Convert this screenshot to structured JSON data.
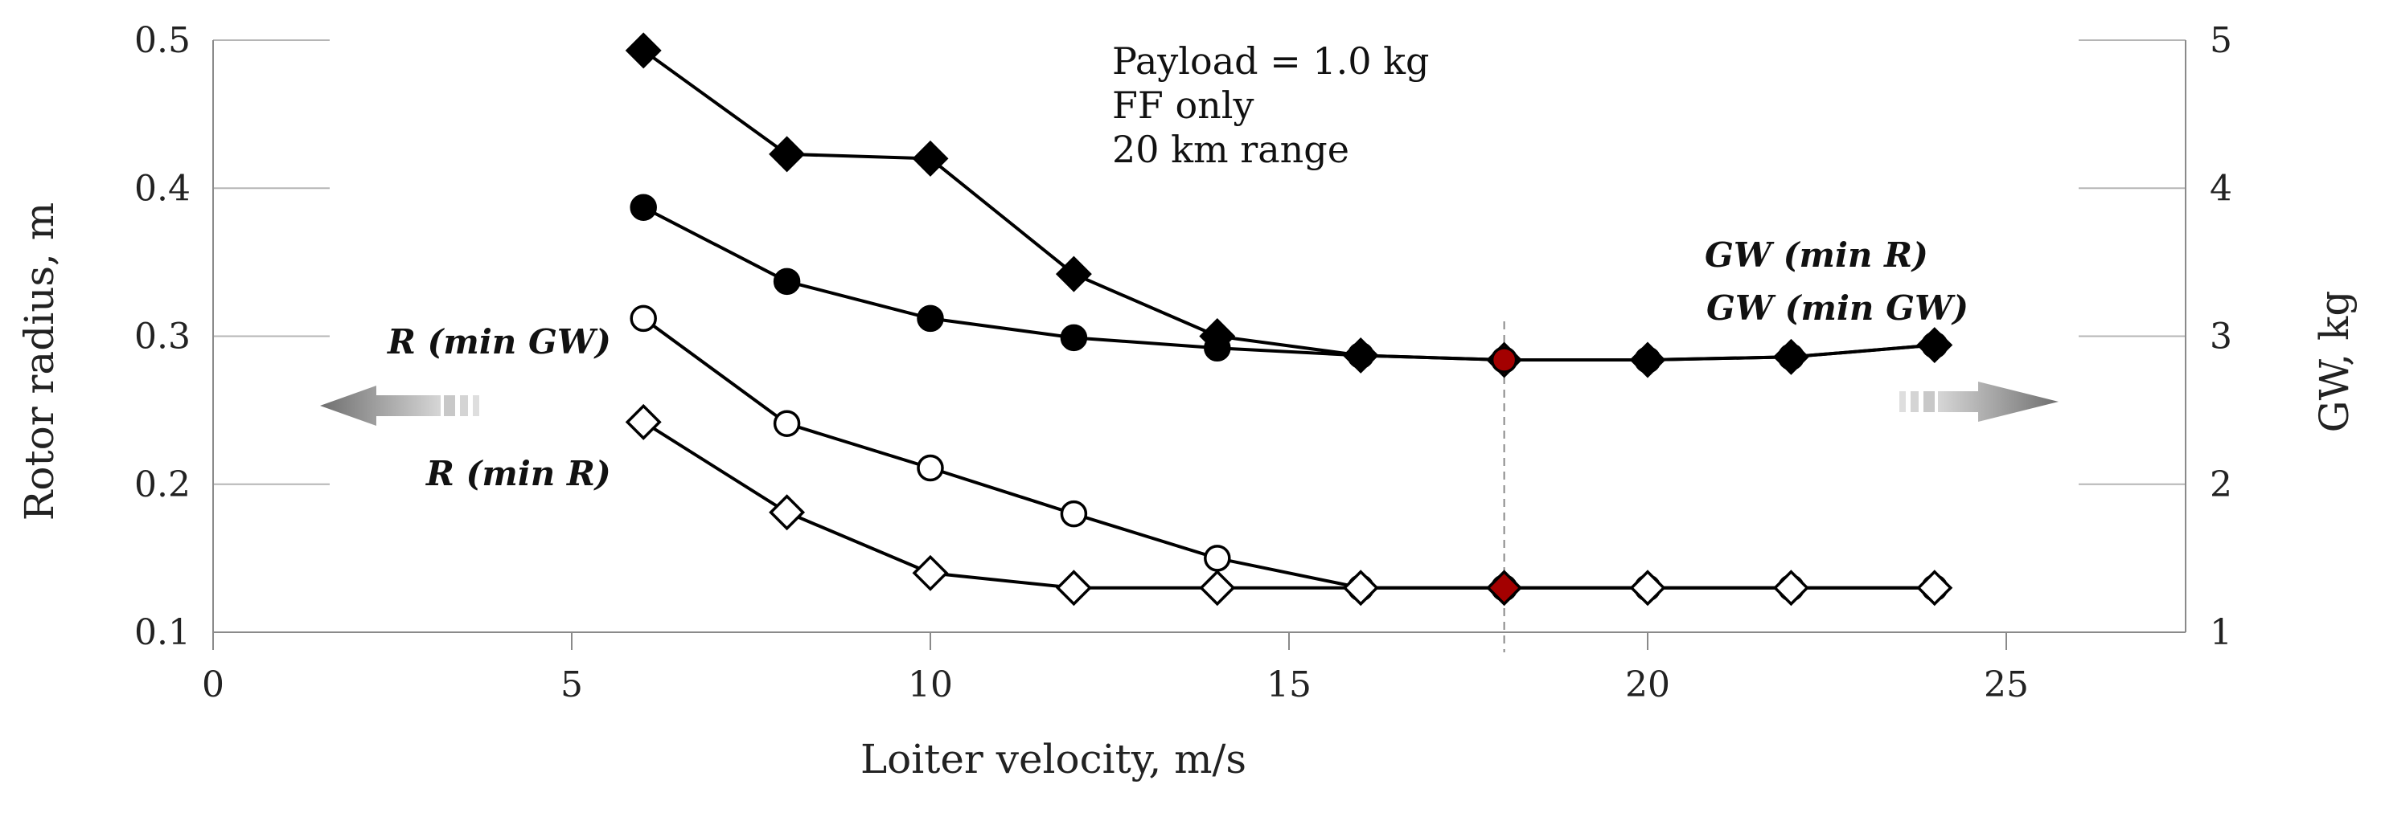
{
  "chart_data": {
    "type": "line",
    "xlabel": "Loiter velocity, m/s",
    "ylabel": "Rotor radius, m",
    "y2label": "GW, kg",
    "xlim": [
      0,
      27.5
    ],
    "ylim": [
      0.1,
      0.5
    ],
    "y2lim": [
      1,
      5
    ],
    "xticks": [
      "0",
      "5",
      "10",
      "15",
      "20",
      "25"
    ],
    "yticks": [
      "0.1",
      "0.2",
      "0.3",
      "0.4",
      "0.5"
    ],
    "y2ticks": [
      "1",
      "2",
      "3",
      "4",
      "5"
    ],
    "annotation": [
      "Payload = 1.0 kg",
      "FF only",
      "20 km range"
    ],
    "reference_line_x": 18,
    "series": [
      {
        "name": "GW (min R)",
        "axis": "right",
        "marker": "diamond",
        "fill": "#000000",
        "x": [
          6,
          8,
          10,
          12,
          14,
          16,
          18,
          20,
          22,
          24
        ],
        "values": [
          4.93,
          4.23,
          4.2,
          3.42,
          3.0,
          2.87,
          2.84,
          2.84,
          2.86,
          2.94
        ]
      },
      {
        "name": "GW (min GW)",
        "axis": "right",
        "marker": "circle",
        "fill": "#000000",
        "x": [
          6,
          8,
          10,
          12,
          14,
          16,
          18,
          20,
          22,
          24
        ],
        "values": [
          3.87,
          3.37,
          3.12,
          2.99,
          2.92,
          2.87,
          2.84,
          2.84,
          2.86,
          2.94
        ]
      },
      {
        "name": "R (min GW)",
        "axis": "left",
        "marker": "circle",
        "fill": "#ffffff",
        "x": [
          6,
          8,
          10,
          12,
          14,
          16,
          18,
          20,
          22,
          24
        ],
        "values": [
          0.312,
          0.241,
          0.211,
          0.18,
          0.15,
          0.13,
          0.13,
          0.13,
          0.13,
          0.13
        ]
      },
      {
        "name": "R (min R)",
        "axis": "left",
        "marker": "diamond",
        "fill": "#ffffff",
        "x": [
          6,
          8,
          10,
          12,
          14,
          16,
          18,
          20,
          22,
          24
        ],
        "values": [
          0.242,
          0.181,
          0.14,
          0.13,
          0.13,
          0.13,
          0.13,
          0.13,
          0.13,
          0.13
        ]
      }
    ],
    "highlight": {
      "x": 18,
      "color": "#a30000"
    },
    "labels": {
      "gw_min_r": "GW (min R)",
      "gw_min_gw": "GW (min GW)",
      "r_min_gw": "R (min GW)",
      "r_min_r": "R (min R)"
    }
  }
}
